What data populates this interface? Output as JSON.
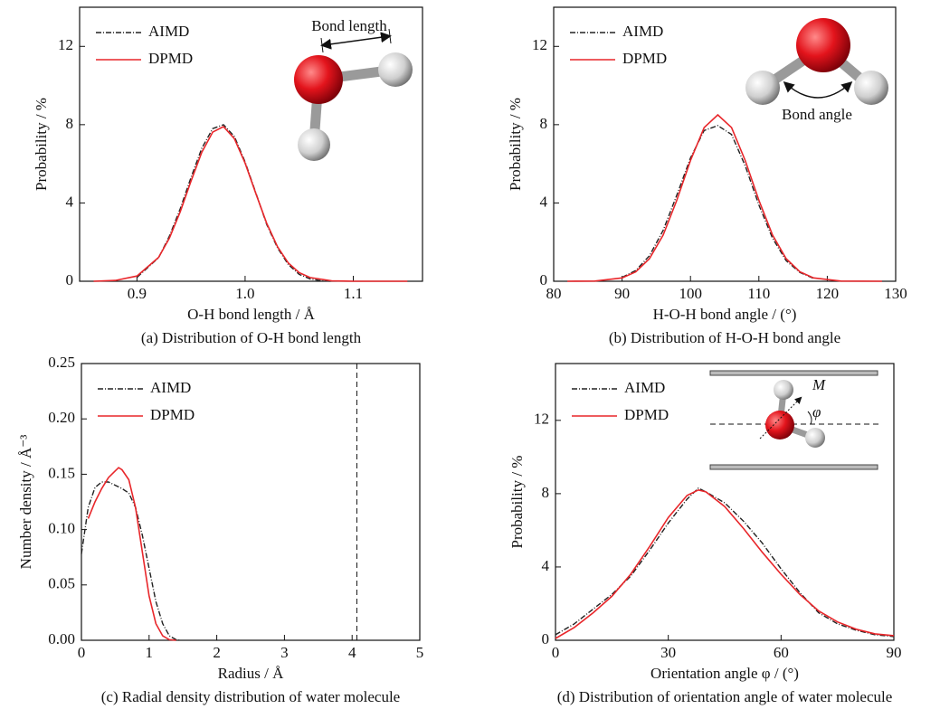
{
  "chart_data": [
    {
      "type": "line",
      "caption": "(a) Distribution of O-H bond length",
      "xlabel": "O-H bond length / Å",
      "ylabel": "Probability / %",
      "xlim": [
        0.847,
        1.164
      ],
      "xticks": [
        0.9,
        {
          "value": 1.0,
          "label": "1.0"
        },
        1.1
      ],
      "ylim": [
        0,
        14
      ],
      "yticks": [
        0,
        4,
        8,
        12
      ],
      "legend": "upper left",
      "annotations": [
        "Bond length"
      ],
      "series": [
        {
          "name": "AIMD",
          "color": "#222222",
          "dash": "6,2,1,2",
          "x": [
            0.9,
            0.92,
            0.93,
            0.94,
            0.95,
            0.96,
            0.97,
            0.98,
            0.99,
            1.0,
            1.01,
            1.02,
            1.03,
            1.04,
            1.05,
            1.06,
            1.07,
            1.08
          ],
          "values": [
            0.2,
            1.2,
            2.3,
            3.7,
            5.3,
            6.8,
            7.8,
            8.0,
            7.4,
            6.1,
            4.5,
            2.9,
            1.7,
            0.85,
            0.35,
            0.12,
            0.03,
            0
          ]
        },
        {
          "name": "DPMD",
          "color": "#e8262a",
          "dash": "",
          "x": [
            0.86,
            0.88,
            0.9,
            0.92,
            0.93,
            0.94,
            0.95,
            0.96,
            0.97,
            0.98,
            0.99,
            1.0,
            1.01,
            1.02,
            1.03,
            1.04,
            1.05,
            1.06,
            1.08,
            1.1,
            1.12,
            1.15
          ],
          "values": [
            0,
            0.04,
            0.27,
            1.22,
            2.2,
            3.55,
            5.11,
            6.6,
            7.62,
            7.9,
            7.29,
            6.04,
            4.47,
            2.96,
            1.76,
            0.93,
            0.44,
            0.19,
            0.02,
            0,
            0,
            0
          ]
        }
      ]
    },
    {
      "type": "line",
      "caption": "(b) Distribution of H-O-H bond angle",
      "xlabel": "H-O-H bond angle / (°)",
      "ylabel": "Probability / %",
      "xlim": [
        80,
        130
      ],
      "xticks": [
        80,
        90,
        100,
        110,
        120,
        130
      ],
      "ylim": [
        0,
        14
      ],
      "yticks": [
        0,
        4,
        8,
        12
      ],
      "legend": "upper left",
      "annotations": [
        "Bond angle"
      ],
      "series": [
        {
          "name": "AIMD",
          "color": "#222222",
          "dash": "6,2,1,2",
          "x": [
            90,
            92,
            94,
            96,
            98,
            100,
            102,
            104,
            106,
            108,
            110,
            112,
            114,
            116,
            118
          ],
          "values": [
            0.2,
            0.55,
            1.3,
            2.6,
            4.4,
            6.3,
            7.7,
            7.95,
            7.5,
            5.9,
            3.9,
            2.2,
            1.05,
            0.45,
            0.15
          ]
        },
        {
          "name": "DPMD",
          "color": "#e8262a",
          "dash": "",
          "x": [
            82,
            86,
            90,
            92,
            94,
            96,
            98,
            100,
            102,
            104,
            106,
            108,
            110,
            112,
            114,
            116,
            118,
            122,
            128
          ],
          "values": [
            0,
            0.01,
            0.17,
            0.48,
            1.15,
            2.36,
            4.14,
            6.17,
            7.85,
            8.5,
            7.85,
            6.17,
            4.14,
            2.36,
            1.15,
            0.48,
            0.17,
            0.01,
            0
          ]
        }
      ]
    },
    {
      "type": "line",
      "caption": "(c) Radial density distribution of water molecule",
      "xlabel": "Radius / Å",
      "ylabel": "Number density / Å⁻³",
      "xlim": [
        0,
        5
      ],
      "xticks": [
        0,
        1,
        2,
        3,
        4,
        5
      ],
      "ylim": [
        0,
        0.25
      ],
      "yticks": [
        {
          "value": 0,
          "label": "0.00"
        },
        {
          "value": 0.05,
          "label": "0.05"
        },
        {
          "value": 0.1,
          "label": "0.10"
        },
        {
          "value": 0.15,
          "label": "0.15"
        },
        {
          "value": 0.2,
          "label": "0.20"
        },
        {
          "value": 0.25,
          "label": "0.25"
        }
      ],
      "legend": "upper left",
      "vlines": [
        4.07
      ],
      "annotations": [],
      "series": [
        {
          "name": "AIMD",
          "color": "#222222",
          "dash": "6,2,1,2",
          "x": [
            0,
            0.1,
            0.2,
            0.3,
            0.4,
            0.5,
            0.6,
            0.7,
            0.8,
            0.9,
            1.0,
            1.1,
            1.2,
            1.3,
            1.4,
            1.45
          ],
          "values": [
            0.078,
            0.12,
            0.138,
            0.143,
            0.143,
            0.14,
            0.137,
            0.133,
            0.12,
            0.095,
            0.065,
            0.035,
            0.015,
            0.004,
            0.0005,
            0
          ]
        },
        {
          "name": "DPMD",
          "color": "#e8262a",
          "dash": "",
          "x": [
            0.1,
            0.2,
            0.3,
            0.4,
            0.5,
            0.55,
            0.6,
            0.7,
            0.8,
            0.9,
            1.0,
            1.1,
            1.2,
            1.3,
            1.4
          ],
          "values": [
            0.11,
            0.125,
            0.137,
            0.147,
            0.153,
            0.156,
            0.154,
            0.145,
            0.12,
            0.08,
            0.04,
            0.015,
            0.004,
            0.0005,
            0
          ]
        }
      ]
    },
    {
      "type": "line",
      "caption": "(d) Distribution of orientation angle of water molecule",
      "xlabel": "Orientation angle φ / (°)",
      "ylabel": "Probability / %",
      "xlim": [
        0,
        90
      ],
      "xticks": [
        0,
        30,
        60,
        90
      ],
      "ylim": [
        0,
        15.1
      ],
      "yticks": [
        0,
        4,
        8,
        12
      ],
      "legend": "upper left",
      "annotations": [
        "M",
        "φ"
      ],
      "series": [
        {
          "name": "AIMD",
          "color": "#222222",
          "dash": "6,2,1,2",
          "x": [
            0,
            5,
            10,
            15,
            20,
            25,
            30,
            35,
            38,
            40,
            45,
            50,
            55,
            60,
            65,
            70,
            75,
            80,
            85,
            90
          ],
          "values": [
            0.3,
            0.9,
            1.7,
            2.5,
            3.5,
            4.9,
            6.4,
            7.7,
            8.3,
            8.1,
            7.5,
            6.5,
            5.3,
            3.9,
            2.6,
            1.5,
            0.9,
            0.55,
            0.3,
            0.2
          ]
        },
        {
          "name": "DPMD",
          "color": "#e8262a",
          "dash": "",
          "x": [
            0,
            5,
            10,
            15,
            20,
            25,
            30,
            35,
            38,
            40,
            45,
            50,
            55,
            60,
            65,
            70,
            75,
            80,
            85,
            90
          ],
          "values": [
            0.1,
            0.7,
            1.5,
            2.4,
            3.6,
            5.1,
            6.7,
            7.9,
            8.2,
            8.1,
            7.3,
            6.1,
            4.8,
            3.6,
            2.5,
            1.6,
            1.0,
            0.6,
            0.35,
            0.25
          ]
        }
      ]
    }
  ]
}
